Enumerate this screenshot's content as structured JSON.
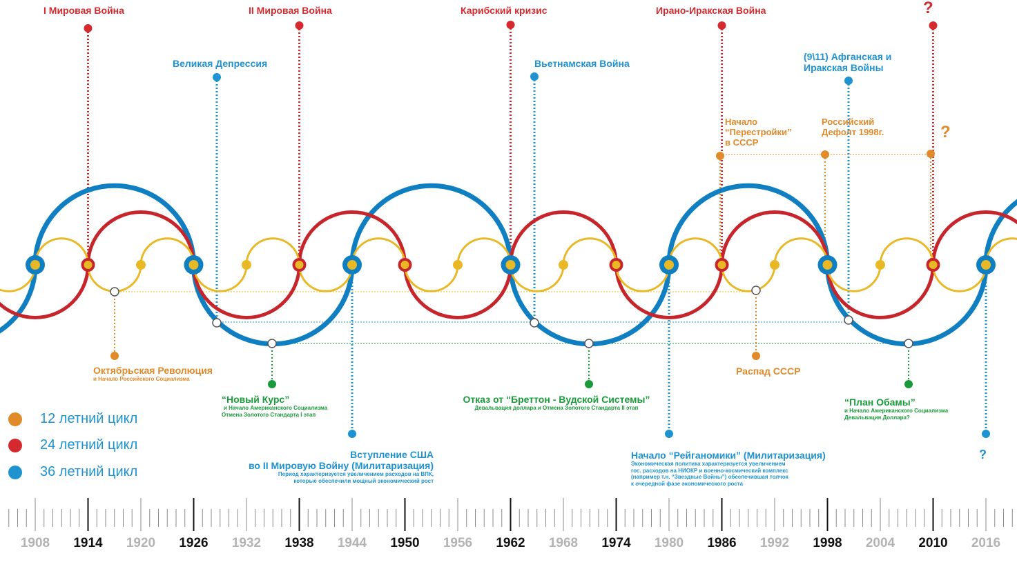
{
  "colors": {
    "cycle12": "#e8b825",
    "cycle24": "#c7252c",
    "cycle36": "#0f7fc1",
    "orange": "#e08a2a",
    "green": "#1a9a3a",
    "label_red": "#d42a2f",
    "label_blue": "#1e93d0"
  },
  "events": {
    "ww1": "I Мировая Война",
    "ww2": "II Мировая Война",
    "caribbean": "Карибский кризис",
    "iran_iraq": "Ирано-Иракская Война",
    "q_top": "?",
    "depression": "Великая Депрессия",
    "vietnam": "Вьетнамская Война",
    "afghan_l1": "(9\\11) Афганская и",
    "afghan_l2": "Иракская Войны",
    "perestroika_l1": "Начало",
    "perestroika_l2": "“Перестройки”",
    "perestroika_l3": "в СССР",
    "default_l1": "Российский",
    "default_l2": "Дефолт 1998г.",
    "q_orange": "?",
    "october": "Октябрьская Революция",
    "october_sub": "и Начало Российского Социализма",
    "ussr_collapse": "Распад СССР",
    "new_deal": "“Новый Курс”",
    "new_deal_sub1": "и Начало Американского  Социализма",
    "new_deal_sub2": "Отмена Золотого Стандарта I этап",
    "bretton": "Отказ от “Бреттон - Вудской Системы”",
    "bretton_sub": "Девальвация доллара и  Отмена Золотого Стандарта II этап",
    "obama": "“План Обамы”",
    "obama_sub1": "и Начало Американского Социализма",
    "obama_sub2": "Девальвация Доллара?",
    "usa_ww2_l1": "Вступление США",
    "usa_ww2_l2": "во II Мировую Войну  (Милитаризация)",
    "usa_ww2_sub1": "Период характеризуется увеличением расходов на ВПК,",
    "usa_ww2_sub2": "которые обеспечили мощный экономический рост",
    "reagan": "Начало “Рейганомики”  (Милитаризация)",
    "reagan_sub1": "Экономическая политика характеризуется увеличением",
    "reagan_sub2": "гос. расходов на НИОКР и военно-космический комплекс",
    "reagan_sub3": "(например т.н. “Звездные Войны”) обеспечившая толчок",
    "reagan_sub4": "к очередной фазе экономического роста",
    "q_blue": "?"
  },
  "legend": [
    {
      "label": "12 летний цикл",
      "color": "#e08a2a"
    },
    {
      "label": "24 летний цикл",
      "color": "#d42a2f"
    },
    {
      "label": "36 летний цикл",
      "color": "#1e93d0"
    }
  ],
  "timeline": {
    "years": [
      "1908",
      "1914",
      "1920",
      "1926",
      "1932",
      "1938",
      "1944",
      "1950",
      "1956",
      "1962",
      "1968",
      "1974",
      "1980",
      "1986",
      "1992",
      "1998",
      "2004",
      "2010",
      "2016"
    ],
    "major": [
      "1914",
      "1926",
      "1938",
      "1950",
      "1962",
      "1974",
      "1986",
      "1998",
      "2010"
    ]
  }
}
